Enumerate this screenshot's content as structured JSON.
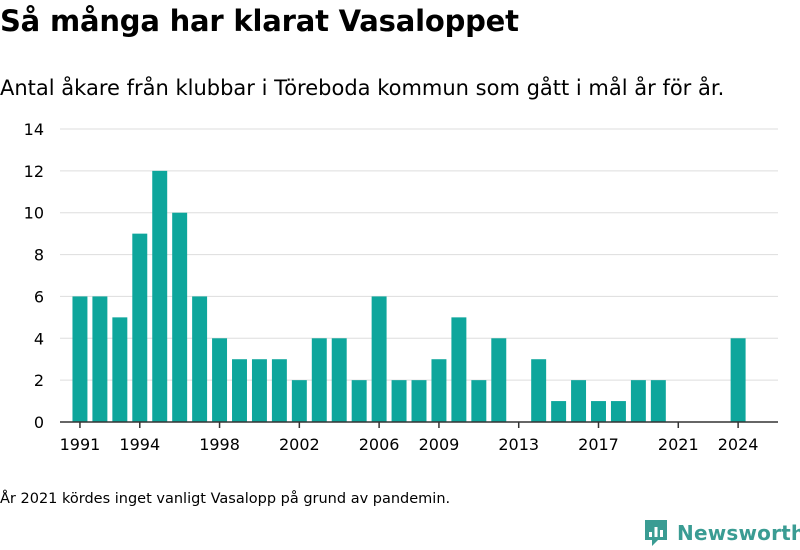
{
  "title": "Så många har klarat Vasaloppet",
  "subtitle": "Antal åkare från klubbar i Töreboda kommun som gått i mål år för år.",
  "note": "År 2021 kördes inget vanligt Vasalopp på grund av pandemin.",
  "brand": {
    "name": "Newsworthy",
    "icon": "newsworthy-logo-icon",
    "color": "#3a9c93"
  },
  "colors": {
    "bar": "#0ea69c",
    "grid": "#dddddd",
    "axis": "#333333"
  },
  "chart_data": {
    "type": "bar",
    "title": "Så många har klarat Vasaloppet",
    "subtitle": "Antal åkare från klubbar i Töreboda kommun som gått i mål år för år.",
    "xlabel": "",
    "ylabel": "",
    "ylim": [
      0,
      14
    ],
    "yticks": [
      0,
      2,
      4,
      6,
      8,
      10,
      12,
      14
    ],
    "xlim": [
      1990,
      2026
    ],
    "xticks": [
      1991,
      1994,
      1998,
      2002,
      2006,
      2009,
      2013,
      2017,
      2021,
      2024
    ],
    "grid": true,
    "x": [
      1991,
      1992,
      1993,
      1994,
      1995,
      1996,
      1997,
      1998,
      1999,
      2000,
      2001,
      2002,
      2003,
      2004,
      2005,
      2006,
      2007,
      2008,
      2009,
      2010,
      2011,
      2012,
      2014,
      2015,
      2016,
      2017,
      2018,
      2019,
      2020,
      2024
    ],
    "values": [
      6,
      6,
      5,
      9,
      12,
      10,
      6,
      4,
      3,
      3,
      3,
      2,
      4,
      4,
      2,
      6,
      2,
      2,
      3,
      5,
      2,
      4,
      3,
      1,
      2,
      1,
      1,
      2,
      2,
      4
    ]
  }
}
